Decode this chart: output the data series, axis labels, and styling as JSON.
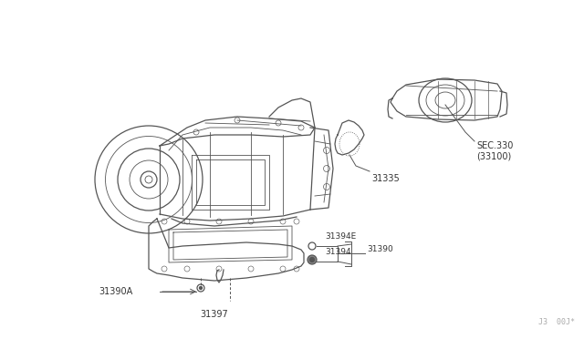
{
  "bg_color": "#ffffff",
  "line_color": "#555555",
  "text_color": "#333333",
  "watermark": "J3  00J*",
  "label_31335": "31335",
  "label_SEC330": "SEC.330\n(33100)",
  "label_31390A": "31390A",
  "label_31397": "31397",
  "label_31394E": "31394E",
  "label_31394": "31394",
  "label_31390": "31390",
  "fontsize_label": 7.0,
  "fontsize_watermark": 6.0,
  "lw_main": 0.9,
  "lw_detail": 0.6,
  "lw_leader": 0.7
}
